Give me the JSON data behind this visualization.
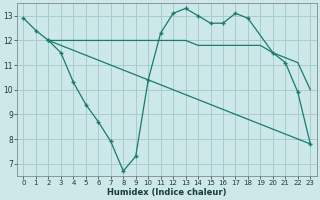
{
  "bg_color": "#cce8e8",
  "grid_color": "#aacccc",
  "line_color": "#1a7a6e",
  "xlabel": "Humidex (Indice chaleur)",
  "xlim": [
    -0.5,
    23.5
  ],
  "ylim": [
    6.5,
    13.5
  ],
  "xticks": [
    0,
    1,
    2,
    3,
    4,
    5,
    6,
    7,
    8,
    9,
    10,
    11,
    12,
    13,
    14,
    15,
    16,
    17,
    18,
    19,
    20,
    21,
    22,
    23
  ],
  "yticks": [
    7,
    8,
    9,
    10,
    11,
    12,
    13
  ],
  "line1_x": [
    0,
    1,
    2
  ],
  "line1_y": [
    12.9,
    12.4,
    12.0
  ],
  "line2_x": [
    2,
    3,
    4,
    5,
    6,
    7,
    8,
    9,
    10,
    11,
    12,
    13,
    14,
    15,
    16,
    17,
    18,
    20,
    21,
    22,
    23
  ],
  "line2_y": [
    12.0,
    11.5,
    10.3,
    9.4,
    8.7,
    7.9,
    6.7,
    7.3,
    10.4,
    12.3,
    13.1,
    13.3,
    13.0,
    12.7,
    12.7,
    13.1,
    12.9,
    11.5,
    11.1,
    9.9,
    7.8
  ],
  "line3_x": [
    2,
    23
  ],
  "line3_y": [
    12.0,
    7.8
  ],
  "line4_x": [
    2,
    10,
    11,
    12,
    13,
    14,
    15,
    16,
    17,
    18,
    19,
    20,
    22,
    23
  ],
  "line4_y": [
    12.0,
    12.0,
    12.0,
    12.0,
    12.0,
    11.8,
    11.8,
    11.8,
    11.8,
    11.8,
    11.8,
    11.5,
    11.1,
    10.0
  ]
}
